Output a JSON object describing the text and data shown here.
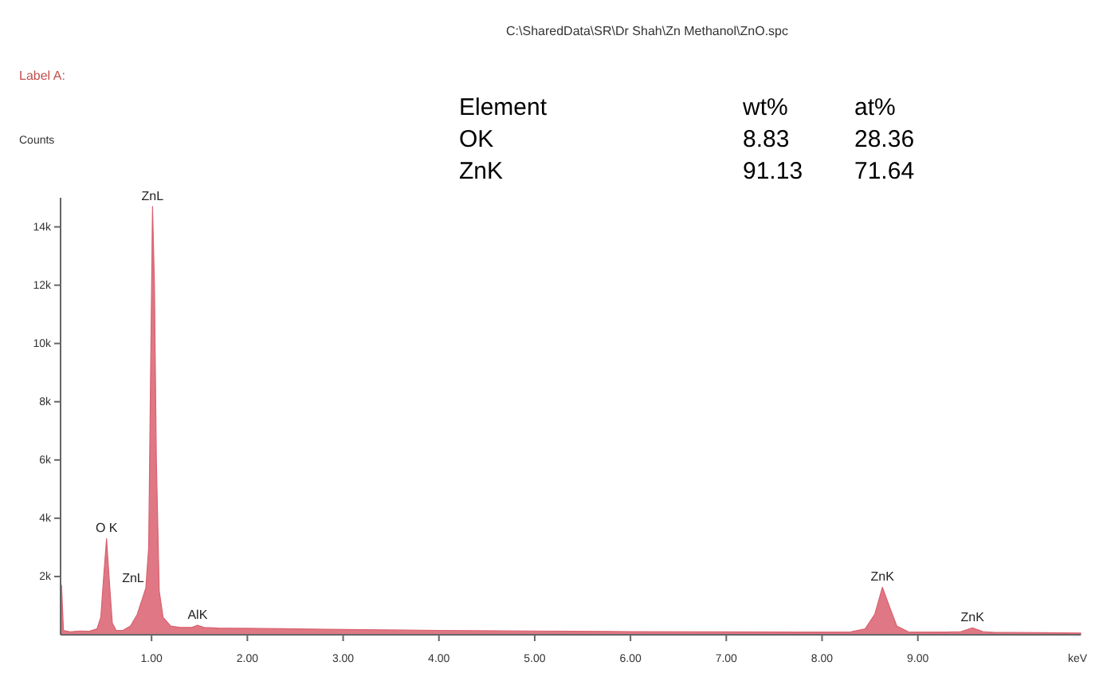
{
  "chart_data": {
    "type": "area",
    "title": "C:\\SharedData\\SR\\Dr Shah\\Zn Methanol\\ZnO.spc",
    "subtitle": "Label A:",
    "xlabel": "keV",
    "ylabel": "Counts",
    "x": [
      0.06,
      0.08,
      0.15,
      0.25,
      0.35,
      0.43,
      0.47,
      0.5,
      0.53,
      0.56,
      0.59,
      0.63,
      0.7,
      0.78,
      0.85,
      0.9,
      0.94,
      0.97,
      0.99,
      1.01,
      1.03,
      1.05,
      1.08,
      1.12,
      1.2,
      1.3,
      1.42,
      1.48,
      1.55,
      1.7,
      2.0,
      2.5,
      3.0,
      4.0,
      5.0,
      6.0,
      7.0,
      7.8,
      8.3,
      8.45,
      8.55,
      8.63,
      8.7,
      8.78,
      8.9,
      9.3,
      9.45,
      9.57,
      9.68,
      9.8,
      10.3,
      10.7
    ],
    "series": [
      {
        "color": "#d9606f",
        "values": [
          1700,
          150,
          100,
          130,
          120,
          200,
          600,
          2000,
          3300,
          1800,
          400,
          150,
          150,
          300,
          700,
          1200,
          1600,
          3000,
          9000,
          14700,
          12000,
          6000,
          1500,
          600,
          300,
          250,
          250,
          330,
          250,
          230,
          220,
          200,
          180,
          150,
          130,
          110,
          100,
          90,
          100,
          200,
          700,
          1630,
          1000,
          300,
          100,
          90,
          110,
          240,
          110,
          80,
          70,
          60
        ]
      }
    ],
    "xlim": [
      0.05,
      10.7
    ],
    "ylim": [
      0,
      15000
    ],
    "xticks": [
      {
        "value": 1,
        "label": "1.00"
      },
      {
        "value": 2,
        "label": "2.00"
      },
      {
        "value": 3,
        "label": "3.00"
      },
      {
        "value": 4,
        "label": "4.00"
      },
      {
        "value": 5,
        "label": "5.00"
      },
      {
        "value": 6,
        "label": "6.00"
      },
      {
        "value": 7,
        "label": "7.00"
      },
      {
        "value": 8,
        "label": "8.00"
      },
      {
        "value": 9,
        "label": "9.00"
      }
    ],
    "yticks": [
      {
        "value": 2000,
        "label": "2k"
      },
      {
        "value": 4000,
        "label": "4k"
      },
      {
        "value": 6000,
        "label": "6k"
      },
      {
        "value": 8000,
        "label": "8k"
      },
      {
        "value": 10000,
        "label": "10k"
      },
      {
        "value": 12000,
        "label": "12k"
      },
      {
        "value": 14000,
        "label": "14k"
      }
    ],
    "grid": false,
    "annotations": [
      "Element",
      "wt%",
      "at%",
      "OK",
      "8.83",
      "28.36",
      "ZnK",
      "91.13",
      "71.64",
      {
        "text": "O K",
        "x": 0.53,
        "y": 3300
      },
      {
        "text": "ZnL",
        "x": 1.01,
        "y": 14700
      },
      {
        "text": "ZnL",
        "x": 0.94,
        "y": 1600
      },
      {
        "text": "AlK",
        "x": 1.48,
        "y": 330
      },
      {
        "text": "ZnK",
        "x": 8.63,
        "y": 1630
      },
      {
        "text": "ZnK",
        "x": 9.57,
        "y": 240
      }
    ]
  }
}
